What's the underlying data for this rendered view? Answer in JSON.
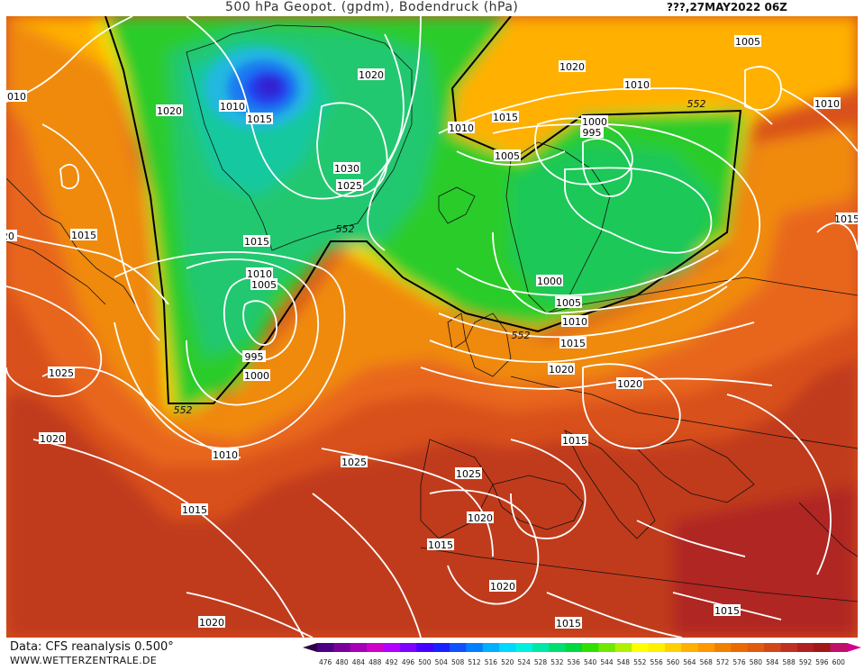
{
  "title": {
    "main": "500 hPa Geopot. (gpdm), Bodendruck (hPa)",
    "date": "???,27MAY2022 06Z"
  },
  "footer": {
    "data_source": "Data: CFS reanalysis 0.500°",
    "website": "WWW.WETTERZENTRALE.DE"
  },
  "legend": {
    "levels": [
      "476",
      "480",
      "484",
      "488",
      "492",
      "496",
      "500",
      "504",
      "508",
      "512",
      "516",
      "520",
      "524",
      "528",
      "532",
      "536",
      "540",
      "544",
      "548",
      "552",
      "556",
      "560",
      "564",
      "568",
      "572",
      "576",
      "580",
      "584",
      "588",
      "592",
      "596",
      "600"
    ],
    "colors": [
      "#2d0046",
      "#4b0082",
      "#7a009c",
      "#a600b8",
      "#d000c8",
      "#b400ff",
      "#8000ff",
      "#4600ff",
      "#1a20ff",
      "#1050ff",
      "#0080ff",
      "#00b0ff",
      "#00d8ff",
      "#00f0e0",
      "#00e8a8",
      "#00e070",
      "#00d840",
      "#30e000",
      "#70e800",
      "#b0f000",
      "#ffff00",
      "#fff000",
      "#ffd000",
      "#ffb000",
      "#ff9800",
      "#f08000",
      "#e86a00",
      "#e05a10",
      "#d04818",
      "#c03020",
      "#b02020",
      "#a01818",
      "#c0106a",
      "#d0008a"
    ]
  },
  "pressure_labels": [
    {
      "text": "1010"
    },
    {
      "text": "1020"
    },
    {
      "text": "1015"
    },
    {
      "text": "1010"
    },
    {
      "text": "1015"
    },
    {
      "text": "1020"
    },
    {
      "text": "1030"
    },
    {
      "text": "1025"
    },
    {
      "text": "1015"
    },
    {
      "text": "1010"
    },
    {
      "text": "1005"
    },
    {
      "text": "995"
    },
    {
      "text": "1000"
    },
    {
      "text": "1025"
    },
    {
      "text": "1020"
    },
    {
      "text": "1010"
    },
    {
      "text": "1015"
    },
    {
      "text": "1020"
    },
    {
      "text": "1010"
    },
    {
      "text": "1015"
    },
    {
      "text": "1010"
    },
    {
      "text": "1005"
    },
    {
      "text": "1000"
    },
    {
      "text": "995"
    },
    {
      "text": "1005"
    },
    {
      "text": "1010"
    },
    {
      "text": "1000"
    },
    {
      "text": "1005"
    },
    {
      "text": "1010"
    },
    {
      "text": "1015"
    },
    {
      "text": "1020"
    },
    {
      "text": "1020"
    },
    {
      "text": "1015"
    },
    {
      "text": "1025"
    },
    {
      "text": "1025"
    },
    {
      "text": "1020"
    },
    {
      "text": "1015"
    },
    {
      "text": "1020"
    },
    {
      "text": "1015"
    },
    {
      "text": "1015"
    },
    {
      "text": "1020"
    },
    {
      "text": "1015"
    },
    {
      "text": "20"
    }
  ],
  "geopotential_labels": [
    {
      "text": "552"
    },
    {
      "text": "552"
    },
    {
      "text": "552"
    },
    {
      "text": "552"
    }
  ]
}
